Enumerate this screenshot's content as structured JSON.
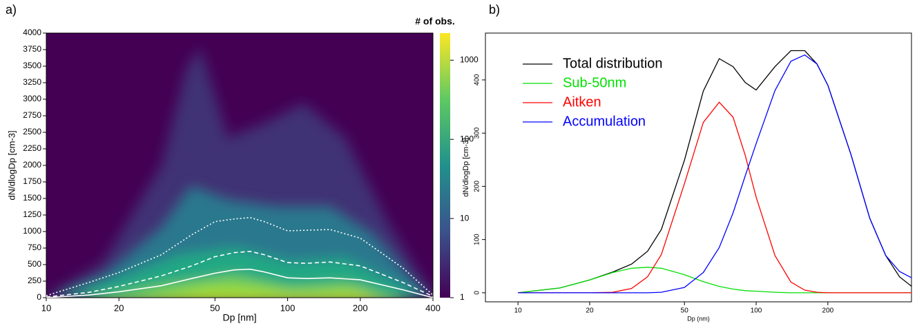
{
  "chart_data": [
    {
      "type": "line",
      "label": "a)",
      "x_label": "Dp [nm]",
      "y_label": "dN/dlogDp [cm-3]",
      "xscale": "log",
      "xlim": [
        10,
        400
      ],
      "xticks": [
        10,
        20,
        50,
        100,
        200,
        400
      ],
      "ylim": [
        0,
        4000
      ],
      "yticks": [
        0,
        250,
        500,
        750,
        1000,
        1250,
        1500,
        1750,
        2000,
        2250,
        2500,
        2750,
        3000,
        3250,
        3500,
        3750,
        4000
      ],
      "x": [
        10,
        15,
        20,
        30,
        40,
        50,
        60,
        70,
        80,
        100,
        120,
        150,
        200,
        300,
        400
      ],
      "series": [
        {
          "color": "#ffffff",
          "dash": "solid",
          "values": [
            0,
            40,
            90,
            180,
            290,
            370,
            420,
            430,
            390,
            300,
            290,
            300,
            270,
            120,
            0
          ]
        },
        {
          "color": "#ffffff",
          "dash": "dashed",
          "values": [
            10,
            80,
            170,
            330,
            480,
            620,
            680,
            700,
            650,
            530,
            520,
            540,
            480,
            230,
            20
          ]
        },
        {
          "color": "#ffffff",
          "dash": "dotted",
          "values": [
            30,
            230,
            380,
            650,
            950,
            1150,
            1190,
            1210,
            1150,
            1010,
            1020,
            1030,
            900,
            450,
            40
          ]
        }
      ],
      "colorbar": {
        "title": "# of obs.",
        "scale": "log",
        "lim": [
          1,
          2200
        ],
        "ticks": [
          1,
          10,
          100,
          1000
        ]
      }
    },
    {
      "type": "line",
      "label": "b)",
      "x_label": "Dp (nm)",
      "y_label": "dN/dlogDp [cm-3]",
      "xscale": "log",
      "xlim": [
        7.3,
        449
      ],
      "xticks": [
        10,
        20,
        50,
        100,
        200
      ],
      "ylim": [
        -17,
        488
      ],
      "yticks": [
        0,
        100,
        200,
        300,
        400
      ],
      "legend": "top-left",
      "x": [
        10,
        15,
        20,
        25,
        30,
        35,
        40,
        50,
        60,
        70,
        80,
        90,
        100,
        120,
        140,
        160,
        180,
        200,
        250,
        300,
        350,
        400,
        450
      ],
      "series": [
        {
          "name": "Total distribution",
          "color": "#000000",
          "values": [
            0,
            9,
            24,
            39,
            54,
            78,
            119,
            249,
            379,
            440,
            425,
            395,
            381,
            425,
            455,
            455,
            430,
            390,
            260,
            140,
            70,
            30,
            12
          ]
        },
        {
          "name": "Sub-50nm",
          "color": "#00e000",
          "values": [
            0,
            9,
            24,
            38,
            46,
            48,
            46,
            34,
            21,
            12,
            7,
            4,
            3,
            1,
            0,
            0,
            0,
            0,
            0,
            0,
            0,
            0,
            0
          ]
        },
        {
          "name": "Aitken",
          "color": "#ff0000",
          "values": [
            0,
            0,
            0,
            1,
            8,
            30,
            72,
            205,
            320,
            358,
            330,
            258,
            180,
            70,
            20,
            5,
            1,
            0,
            0,
            0,
            0,
            0,
            0
          ]
        },
        {
          "name": "Accumulation",
          "color": "#0000ff",
          "values": [
            0,
            0,
            0,
            0,
            0,
            0,
            1,
            10,
            38,
            85,
            150,
            220,
            280,
            380,
            435,
            447,
            430,
            390,
            260,
            140,
            70,
            40,
            28
          ]
        }
      ]
    }
  ]
}
